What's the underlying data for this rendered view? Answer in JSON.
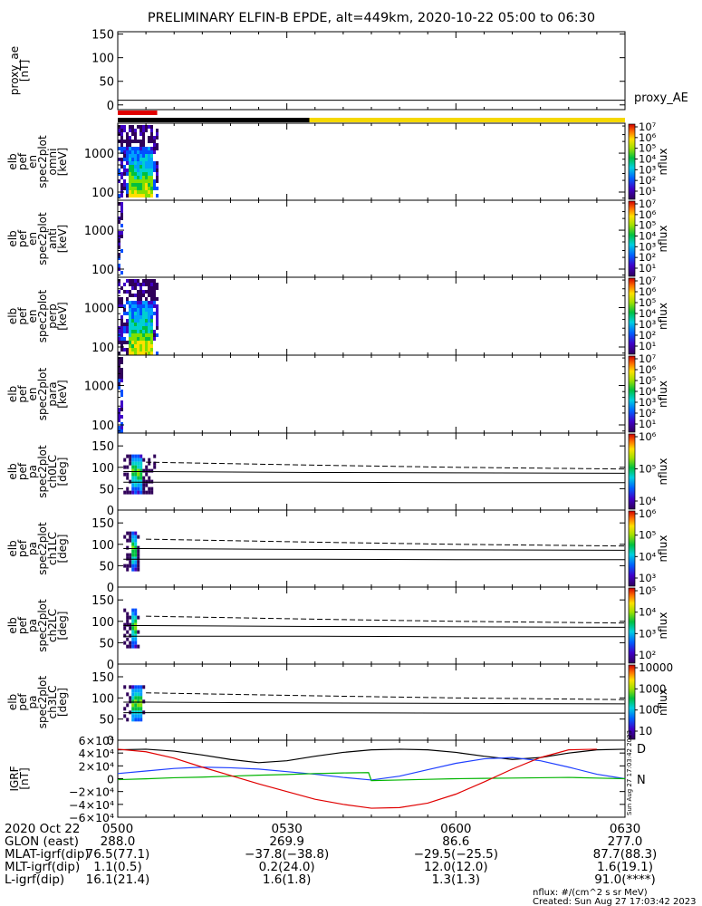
{
  "title": "PRELIMINARY ELFIN-B EPDE, alt=449km, 2020-10-22 05:00 to 06:30",
  "colors": {
    "sci_zone": "#e00000",
    "orbit_dark": "#000000",
    "orbit_light": "#f5d800",
    "igrf_x": "#000000",
    "igrf_y": "#1f3fff",
    "igrf_z": "#00b400",
    "igrf_total": "#e00000"
  },
  "chart_data": [
    {
      "type": "line",
      "id": "proxy_ae",
      "ylabel": [
        "proxy_ae",
        "[nT]"
      ],
      "yticks": [
        "150",
        "100",
        "50",
        "0"
      ],
      "ylim": [
        -10,
        155
      ],
      "legend": "proxy_AE",
      "series": [
        {
          "x": [
            "05:00",
            "06:30"
          ],
          "values": [
            10,
            10
          ]
        }
      ]
    },
    {
      "type": "bar",
      "id": "orbit_bar",
      "segments": [
        {
          "start": "05:00",
          "end": "05:07",
          "color": "sci_zone"
        },
        {
          "start": "05:00",
          "end": "05:34",
          "color": "orbit_dark"
        },
        {
          "start": "05:34",
          "end": "06:30",
          "color": "orbit_light"
        }
      ]
    },
    {
      "type": "heatmap",
      "id": "en_spec_omni",
      "ylabel": [
        "elb",
        "pef",
        "en",
        "spec2plot",
        "omni",
        "[keV]"
      ],
      "yticks": [
        "1000",
        "100"
      ],
      "log": true,
      "data_extent": [
        "05:00",
        "05:07"
      ],
      "colorbar": {
        "label": "nflux",
        "ticks": [
          "10⁷",
          "10⁶",
          "10⁵",
          "10⁴",
          "10³",
          "10²",
          "10¹"
        ]
      }
    },
    {
      "type": "heatmap",
      "id": "en_spec_anti",
      "ylabel": [
        "elb",
        "pef",
        "en",
        "spec2plot",
        "anti",
        "[keV]"
      ],
      "yticks": [
        "1000",
        "100"
      ],
      "log": true,
      "data_extent": [
        "05:00",
        "05:01"
      ],
      "colorbar": {
        "label": "nflux",
        "ticks": [
          "10⁷",
          "10⁶",
          "10⁵",
          "10⁴",
          "10³",
          "10²",
          "10¹"
        ]
      }
    },
    {
      "type": "heatmap",
      "id": "en_spec_perp",
      "ylabel": [
        "elb",
        "pef",
        "en",
        "spec2plot",
        "perp",
        "[keV]"
      ],
      "yticks": [
        "1000",
        "100"
      ],
      "log": true,
      "data_extent": [
        "05:00",
        "05:07"
      ],
      "colorbar": {
        "label": "nflux",
        "ticks": [
          "10⁷",
          "10⁶",
          "10⁵",
          "10⁴",
          "10³",
          "10²",
          "10¹"
        ]
      }
    },
    {
      "type": "heatmap",
      "id": "en_spec_para",
      "ylabel": [
        "elb",
        "pef",
        "en",
        "spec2plot",
        "para",
        "[keV]"
      ],
      "yticks": [
        "1000",
        "100"
      ],
      "log": true,
      "data_extent": [
        "05:00",
        "05:01"
      ],
      "colorbar": {
        "label": "nflux",
        "ticks": [
          "10⁷",
          "10⁶",
          "10⁵",
          "10⁴",
          "10³",
          "10²",
          "10¹"
        ]
      }
    },
    {
      "type": "heatmap",
      "id": "pa_spec_ch0",
      "ylabel": [
        "elb",
        "pef",
        "pa",
        "spec2plot",
        "ch0LC",
        "[deg]"
      ],
      "yticks": [
        "150",
        "100",
        "50",
        "0"
      ],
      "ylim": [
        0,
        180
      ],
      "data_extent": [
        "05:01",
        "05:07"
      ],
      "loss_cone": {
        "x": [
          "05:05",
          "05:35",
          "06:00",
          "06:30"
        ],
        "solid": [
          90,
          88,
          87,
          86
        ],
        "dashed": [
          112,
          105,
          100,
          96
        ],
        "lower": [
          65,
          65,
          64,
          64
        ]
      },
      "colorbar": {
        "label": "nflux",
        "ticks": [
          "10⁶",
          "10⁵",
          "10⁴"
        ]
      }
    },
    {
      "type": "heatmap",
      "id": "pa_spec_ch1",
      "ylabel": [
        "elb",
        "pef",
        "pa",
        "spec2plot",
        "ch1LC",
        "[deg]"
      ],
      "yticks": [
        "150",
        "100",
        "50",
        "0"
      ],
      "ylim": [
        0,
        180
      ],
      "data_extent": [
        "05:01",
        "05:04"
      ],
      "loss_cone": {
        "x": [
          "05:05",
          "05:35",
          "06:00",
          "06:30"
        ],
        "solid": [
          90,
          88,
          87,
          86
        ],
        "dashed": [
          112,
          105,
          100,
          96
        ],
        "lower": [
          65,
          65,
          64,
          64
        ]
      },
      "colorbar": {
        "label": "nflux",
        "ticks": [
          "10⁶",
          "10⁵",
          "10⁴",
          "10³"
        ]
      }
    },
    {
      "type": "heatmap",
      "id": "pa_spec_ch2",
      "ylabel": [
        "elb",
        "pef",
        "pa",
        "spec2plot",
        "ch2LC",
        "[deg]"
      ],
      "yticks": [
        "150",
        "100",
        "50",
        "0"
      ],
      "ylim": [
        0,
        180
      ],
      "data_extent": [
        "05:01",
        "05:04"
      ],
      "loss_cone": {
        "x": [
          "05:05",
          "05:35",
          "06:00",
          "06:30"
        ],
        "solid": [
          90,
          88,
          87,
          86
        ],
        "dashed": [
          112,
          105,
          100,
          96
        ],
        "lower": [
          65,
          65,
          64,
          64
        ]
      },
      "colorbar": {
        "label": "nflux",
        "ticks": [
          "10⁵",
          "10⁴",
          "10³",
          "10²"
        ]
      }
    },
    {
      "type": "heatmap",
      "id": "pa_spec_ch3",
      "ylabel": [
        "elb",
        "pef",
        "pa",
        "spec2plot",
        "ch3LC",
        "[deg]"
      ],
      "yticks": [
        "150",
        "100",
        "50",
        "0"
      ],
      "ylim": [
        0,
        180
      ],
      "data_extent": [
        "05:01",
        "05:05"
      ],
      "loss_cone": {
        "x": [
          "05:05",
          "05:35",
          "06:00",
          "06:30"
        ],
        "solid": [
          90,
          88,
          87,
          86
        ],
        "dashed": [
          112,
          105,
          100,
          96
        ],
        "lower": [
          65,
          65,
          64,
          64
        ]
      },
      "colorbar": {
        "label": "nflux",
        "ticks": [
          "10000",
          "1000",
          "100",
          "10"
        ],
        "linear_labels": true
      }
    },
    {
      "type": "line",
      "id": "igrf",
      "ylabel": [
        "IGRF",
        "[nT]"
      ],
      "yticks": [
        "6×10⁴",
        "4×10⁴",
        "2×10⁴",
        "0",
        "−2×10⁴",
        "−4×10⁴",
        "−6×10⁴"
      ],
      "ylim": [
        -60000,
        60000
      ],
      "series": [
        {
          "name": "X",
          "color": "igrf_x",
          "x": [
            0,
            5,
            10,
            15,
            20,
            25,
            30,
            35,
            40,
            45,
            50,
            55,
            60,
            65,
            70,
            75,
            80,
            85,
            90
          ],
          "values": [
            45000,
            46000,
            43000,
            37000,
            30000,
            25000,
            28000,
            35000,
            41000,
            45000,
            46000,
            45000,
            41000,
            35000,
            30000,
            33000,
            40000,
            45000,
            46000
          ]
        },
        {
          "name": "Y",
          "color": "igrf_y",
          "x": [
            0,
            5,
            10,
            15,
            20,
            25,
            30,
            35,
            40,
            45,
            50,
            55,
            60,
            65,
            70,
            75,
            80,
            85,
            90
          ],
          "values": [
            8000,
            12000,
            16000,
            18000,
            17000,
            15000,
            11000,
            7000,
            2000,
            -2000,
            4000,
            14000,
            24000,
            31000,
            33000,
            28000,
            18000,
            7000,
            0
          ]
        },
        {
          "name": "Z",
          "color": "igrf_z",
          "x": [
            0,
            5,
            10,
            15,
            20,
            25,
            30,
            35,
            40,
            44.5,
            45,
            50,
            55,
            60,
            65,
            70,
            75,
            80,
            85,
            90
          ],
          "values": [
            -1500,
            -200,
            1500,
            2500,
            4000,
            5500,
            6500,
            8000,
            9000,
            9500,
            -3000,
            -2000,
            -1000,
            0,
            500,
            1000,
            1500,
            2000,
            1000,
            0
          ]
        },
        {
          "name": "total",
          "color": "igrf_total",
          "x": [
            0,
            5,
            10,
            15,
            20,
            25,
            30,
            35,
            40,
            45,
            50,
            55,
            60,
            65,
            70,
            75,
            80,
            85
          ],
          "values": [
            46000,
            42000,
            32000,
            18000,
            5000,
            -8000,
            -20000,
            -32000,
            -40000,
            -46000,
            -45000,
            -38000,
            -24000,
            -5000,
            15000,
            33000,
            45000,
            46000
          ]
        }
      ],
      "right_labels": [
        "D",
        "N"
      ],
      "stamp": "Sun Aug 27 17:03:42 2023"
    }
  ],
  "xaxis": {
    "ticks": [
      "0500",
      "0530",
      "0600",
      "0630"
    ]
  },
  "orbit_table": [
    {
      "label": "2020 Oct 22",
      "values": [
        "0500",
        "0530",
        "0600",
        "0630"
      ]
    },
    {
      "label": "GLON (east)",
      "values": [
        "288.0",
        "269.9",
        "86.6",
        "277.0"
      ]
    },
    {
      "label": "MLAT-igrf(dip)",
      "values": [
        "76.5(77.1)",
        "−37.8(−38.8)",
        "−29.5(−25.5)",
        "87.7(88.3)"
      ]
    },
    {
      "label": "MLT-igrf(dip)",
      "values": [
        "1.1(0.5)",
        "0.2(24.0)",
        "12.0(12.0)",
        "1.6(19.1)"
      ]
    },
    {
      "label": "L-igrf(dip)",
      "values": [
        "16.1(21.4)",
        "1.6(1.8)",
        "1.3(1.3)",
        "91.0(****)"
      ]
    }
  ],
  "footer": {
    "units": "nflux: #/(cm^2 s sr MeV)",
    "created": "Created: Sun Aug 27 17:03:42 2023"
  }
}
